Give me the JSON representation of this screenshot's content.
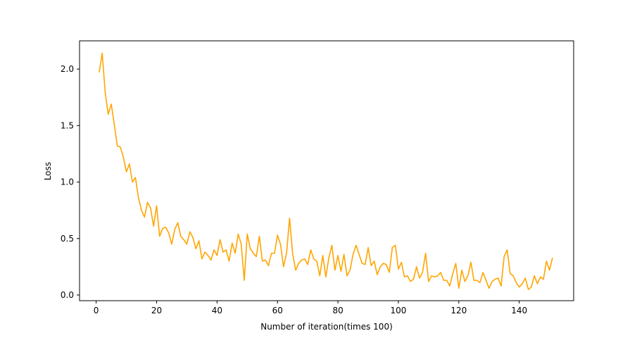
{
  "chart_data": {
    "type": "line",
    "title": "",
    "xlabel": "Number of iteration(times 100)",
    "ylabel": "Loss",
    "xlim": [
      -5.5,
      158
    ],
    "ylim": [
      -0.05,
      2.25
    ],
    "xticks": [
      0,
      20,
      40,
      60,
      80,
      100,
      120,
      140
    ],
    "xtick_labels": [
      "0",
      "20",
      "40",
      "60",
      "80",
      "100",
      "120",
      "140"
    ],
    "yticks": [
      0.0,
      0.5,
      1.0,
      1.5,
      2.0
    ],
    "ytick_labels": [
      "0.0",
      "0.5",
      "1.0",
      "1.5",
      "2.0"
    ],
    "grid": false,
    "series": [
      {
        "name": "loss",
        "color": "#ffa500",
        "x": [
          1,
          2,
          3,
          4,
          5,
          6,
          7,
          8,
          9,
          10,
          11,
          12,
          13,
          14,
          15,
          16,
          17,
          18,
          19,
          20,
          21,
          22,
          23,
          24,
          25,
          26,
          27,
          28,
          29,
          30,
          31,
          32,
          33,
          34,
          35,
          36,
          37,
          38,
          39,
          40,
          41,
          42,
          43,
          44,
          45,
          46,
          47,
          48,
          49,
          50,
          51,
          52,
          53,
          54,
          55,
          56,
          57,
          58,
          59,
          60,
          61,
          62,
          63,
          64,
          65,
          66,
          67,
          68,
          69,
          70,
          71,
          72,
          73,
          74,
          75,
          76,
          77,
          78,
          79,
          80,
          81,
          82,
          83,
          84,
          85,
          86,
          87,
          88,
          89,
          90,
          91,
          92,
          93,
          94,
          95,
          96,
          97,
          98,
          99,
          100,
          101,
          102,
          103,
          104,
          105,
          106,
          107,
          108,
          109,
          110,
          111,
          112,
          113,
          114,
          115,
          116,
          117,
          118,
          119,
          120,
          121,
          122,
          123,
          124,
          125,
          126,
          127,
          128,
          129,
          130,
          131,
          132,
          133,
          134,
          135,
          136,
          137,
          138,
          139,
          140,
          141,
          142,
          143,
          144,
          145,
          146,
          147,
          148,
          149,
          150,
          151
        ],
        "values": [
          1.97,
          2.14,
          1.79,
          1.6,
          1.69,
          1.51,
          1.32,
          1.31,
          1.22,
          1.09,
          1.16,
          1.0,
          1.04,
          0.86,
          0.75,
          0.69,
          0.82,
          0.77,
          0.61,
          0.79,
          0.52,
          0.59,
          0.6,
          0.55,
          0.45,
          0.58,
          0.64,
          0.52,
          0.49,
          0.45,
          0.56,
          0.51,
          0.41,
          0.48,
          0.32,
          0.38,
          0.35,
          0.31,
          0.4,
          0.35,
          0.49,
          0.38,
          0.4,
          0.3,
          0.46,
          0.37,
          0.54,
          0.45,
          0.13,
          0.54,
          0.41,
          0.37,
          0.34,
          0.52,
          0.3,
          0.31,
          0.26,
          0.37,
          0.37,
          0.53,
          0.45,
          0.25,
          0.37,
          0.68,
          0.37,
          0.22,
          0.28,
          0.31,
          0.32,
          0.27,
          0.4,
          0.32,
          0.3,
          0.17,
          0.35,
          0.16,
          0.33,
          0.44,
          0.22,
          0.35,
          0.21,
          0.36,
          0.17,
          0.22,
          0.36,
          0.44,
          0.36,
          0.28,
          0.27,
          0.42,
          0.26,
          0.3,
          0.18,
          0.25,
          0.28,
          0.27,
          0.2,
          0.42,
          0.44,
          0.23,
          0.29,
          0.16,
          0.17,
          0.12,
          0.14,
          0.25,
          0.15,
          0.2,
          0.37,
          0.12,
          0.17,
          0.16,
          0.17,
          0.2,
          0.13,
          0.13,
          0.08,
          0.19,
          0.28,
          0.06,
          0.22,
          0.12,
          0.17,
          0.29,
          0.13,
          0.13,
          0.11,
          0.2,
          0.13,
          0.06,
          0.12,
          0.14,
          0.15,
          0.08,
          0.34,
          0.4,
          0.19,
          0.17,
          0.11,
          0.07,
          0.1,
          0.15,
          0.05,
          0.07,
          0.17,
          0.1,
          0.16,
          0.14,
          0.3,
          0.22,
          0.33
        ]
      }
    ]
  }
}
